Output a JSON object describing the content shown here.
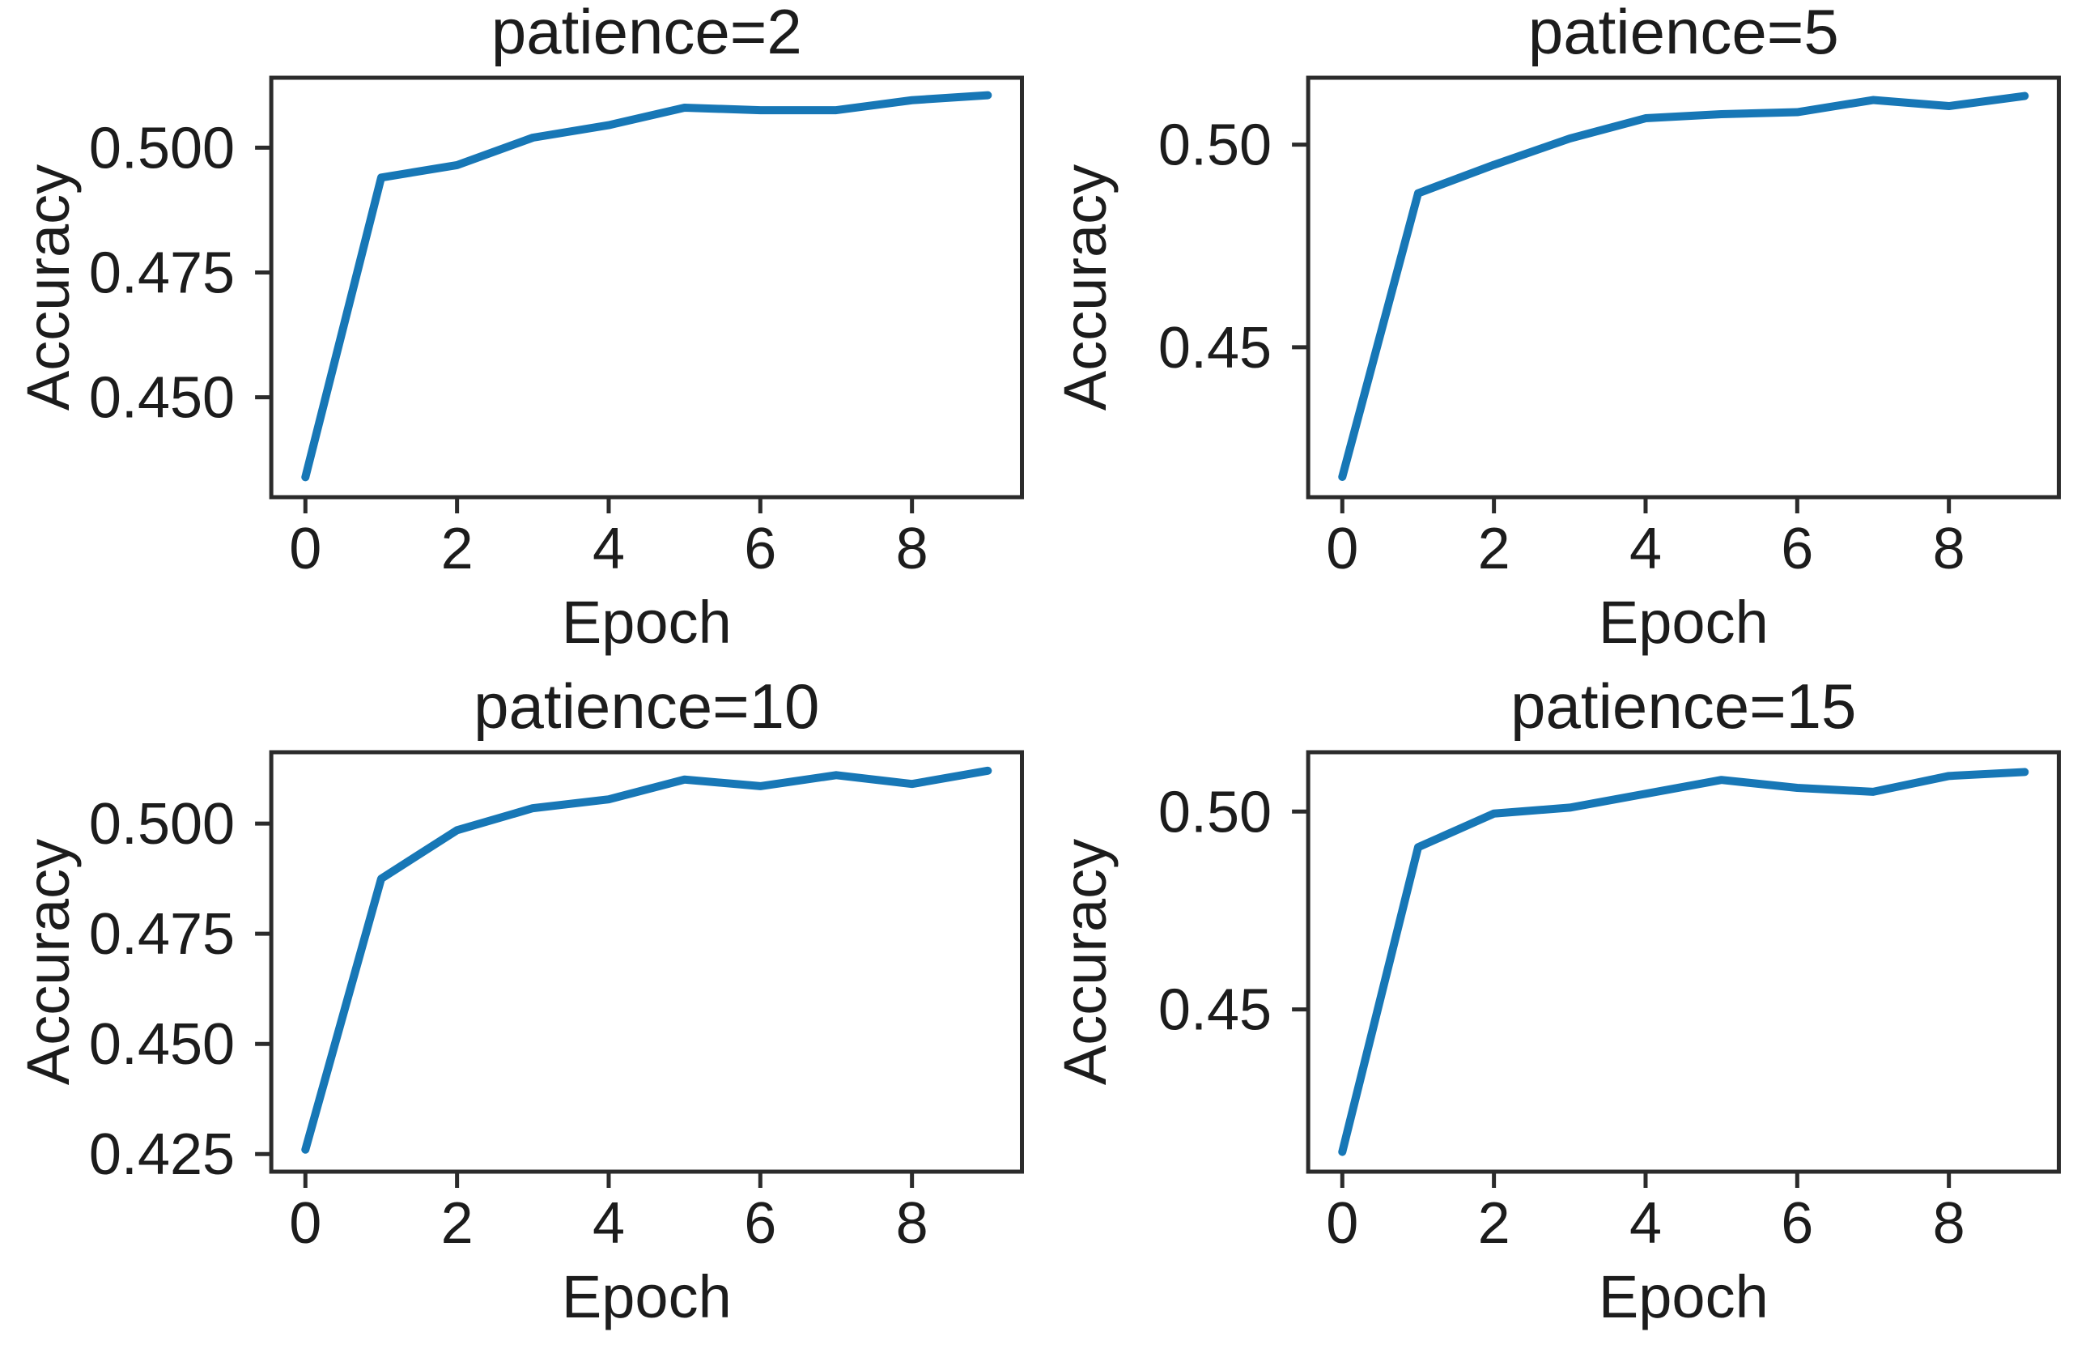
{
  "figure": {
    "background": "#ffffff",
    "line_color": "#1777b6",
    "text_color": "#1c1c1c",
    "axis_color": "#2b2b2b"
  },
  "chart_data": [
    {
      "type": "line",
      "title": "patience=2",
      "xlabel": "Epoch",
      "ylabel": "Accuracy",
      "x": [
        0,
        1,
        2,
        3,
        4,
        5,
        6,
        7,
        8,
        9
      ],
      "y": [
        0.434,
        0.494,
        0.4965,
        0.502,
        0.5045,
        0.508,
        0.5075,
        0.5075,
        0.5095,
        0.5105
      ],
      "xlim": [
        -0.45,
        9.45
      ],
      "ylim": [
        0.43,
        0.514
      ],
      "xticks": [
        0,
        2,
        4,
        6,
        8
      ],
      "xtick_labels": [
        "0",
        "2",
        "4",
        "6",
        "8"
      ],
      "yticks": [
        0.45,
        0.475,
        0.5
      ],
      "ytick_labels": [
        "0.450",
        "0.475",
        "0.500"
      ],
      "grid": false,
      "legend": null
    },
    {
      "type": "line",
      "title": "patience=5",
      "xlabel": "Epoch",
      "ylabel": "Accuracy",
      "x": [
        0,
        1,
        2,
        3,
        4,
        5,
        6,
        7,
        8,
        9
      ],
      "y": [
        0.418,
        0.488,
        0.495,
        0.5015,
        0.5065,
        0.5075,
        0.508,
        0.511,
        0.5095,
        0.512
      ],
      "xlim": [
        -0.45,
        9.45
      ],
      "ylim": [
        0.413,
        0.5165
      ],
      "xticks": [
        0,
        2,
        4,
        6,
        8
      ],
      "xtick_labels": [
        "0",
        "2",
        "4",
        "6",
        "8"
      ],
      "yticks": [
        0.45,
        0.5
      ],
      "ytick_labels": [
        "0.45",
        "0.50"
      ],
      "grid": false,
      "legend": null
    },
    {
      "type": "line",
      "title": "patience=10",
      "xlabel": "Epoch",
      "ylabel": "Accuracy",
      "x": [
        0,
        1,
        2,
        3,
        4,
        5,
        6,
        7,
        8,
        9
      ],
      "y": [
        0.426,
        0.4875,
        0.4985,
        0.5035,
        0.5055,
        0.51,
        0.5085,
        0.511,
        0.509,
        0.512
      ],
      "xlim": [
        -0.45,
        9.45
      ],
      "ylim": [
        0.421,
        0.5162
      ],
      "xticks": [
        0,
        2,
        4,
        6,
        8
      ],
      "xtick_labels": [
        "0",
        "2",
        "4",
        "6",
        "8"
      ],
      "yticks": [
        0.425,
        0.45,
        0.475,
        0.5
      ],
      "ytick_labels": [
        "0.425",
        "0.450",
        "0.475",
        "0.500"
      ],
      "grid": false,
      "legend": null
    },
    {
      "type": "line",
      "title": "patience=15",
      "xlabel": "Epoch",
      "ylabel": "Accuracy",
      "x": [
        0,
        1,
        2,
        3,
        4,
        5,
        6,
        7,
        8,
        9
      ],
      "y": [
        0.414,
        0.491,
        0.4995,
        0.501,
        0.5045,
        0.508,
        0.506,
        0.505,
        0.509,
        0.51
      ],
      "xlim": [
        -0.45,
        9.45
      ],
      "ylim": [
        0.409,
        0.515
      ],
      "xticks": [
        0,
        2,
        4,
        6,
        8
      ],
      "xtick_labels": [
        "0",
        "2",
        "4",
        "6",
        "8"
      ],
      "yticks": [
        0.45,
        0.5
      ],
      "ytick_labels": [
        "0.45",
        "0.50"
      ],
      "grid": false,
      "legend": null
    }
  ]
}
